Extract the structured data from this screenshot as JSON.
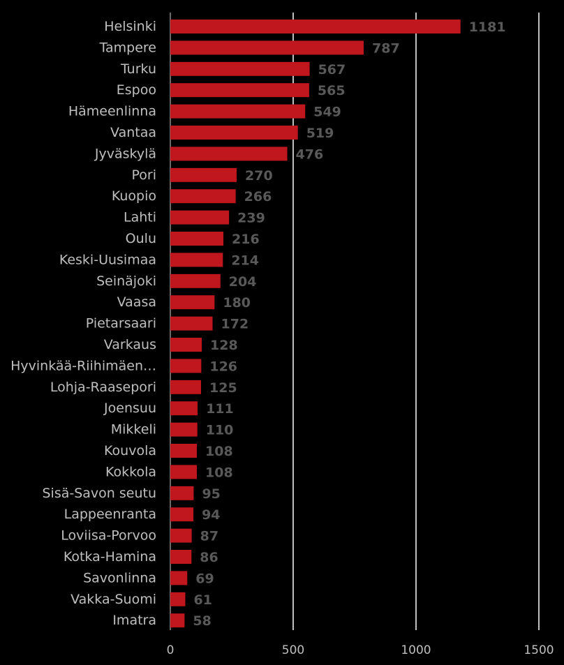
{
  "chart_data": {
    "type": "bar",
    "orientation": "horizontal",
    "categories": [
      "Helsinki",
      "Tampere",
      "Turku",
      "Espoo",
      "Hämeenlinna",
      "Vantaa",
      "Jyväskylä",
      "Pori",
      "Kuopio",
      "Lahti",
      "Oulu",
      "Keski-Uusimaa",
      "Seinäjoki",
      "Vaasa",
      "Pietarsaari",
      "Varkaus",
      "Hyvinkää-Riihimäen…",
      "Lohja-Raasepori",
      "Joensuu",
      "Mikkeli",
      "Kouvola",
      "Kokkola",
      "Sisä-Savon seutu",
      "Lappeenranta",
      "Loviisa-Porvoo",
      "Kotka-Hamina",
      "Savonlinna",
      "Vakka-Suomi",
      "Imatra"
    ],
    "values": [
      1181,
      787,
      567,
      565,
      549,
      519,
      476,
      270,
      266,
      239,
      216,
      214,
      204,
      180,
      172,
      128,
      126,
      125,
      111,
      110,
      108,
      108,
      95,
      94,
      87,
      86,
      69,
      61,
      58
    ],
    "xlim": [
      0,
      1500
    ],
    "xticks": [
      0,
      500,
      1000,
      1500
    ],
    "grid": true,
    "bar_color": "#c0171f",
    "background": "#000000"
  }
}
